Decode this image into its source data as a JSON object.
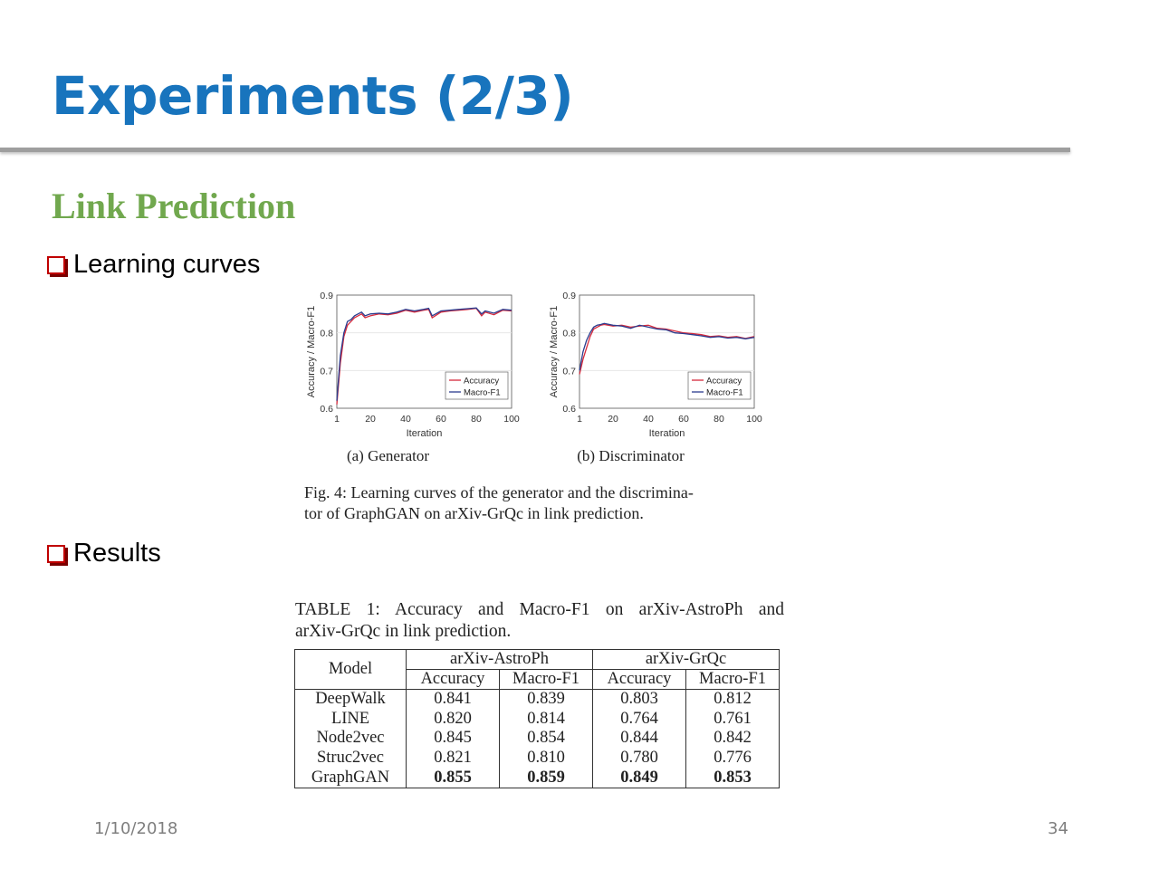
{
  "slide": {
    "title": "Experiments (2/3)",
    "subtitle": "Link Prediction",
    "bullets": [
      "Learning curves",
      "Results"
    ],
    "footer_date": "1/10/2018",
    "page_number": "34"
  },
  "colors": {
    "title": "#1874bd",
    "subtitle": "#71a84e",
    "bullet_box": "#c00000",
    "accuracy_line": "#d62a3c",
    "macro_line": "#2b3c8e"
  },
  "figure": {
    "caption": "Fig. 4: Learning curves of the generator and the discrimina-tor of GraphGAN on arXiv-GrQc in link prediction.",
    "caption_lines": [
      "Fig. 4: Learning curves of the generator and the discrimina-",
      "tor of GraphGAN on arXiv-GrQc in link prediction."
    ]
  },
  "chart_data": [
    {
      "type": "line",
      "title": "(a) Generator",
      "xlabel": "Iteration",
      "ylabel": "Accuracy / Macro-F1",
      "xlim": [
        1,
        100
      ],
      "ylim": [
        0.6,
        0.9
      ],
      "x_ticks": [
        "1",
        "20",
        "40",
        "60",
        "80",
        "100"
      ],
      "y_ticks": [
        "0.6",
        "0.7",
        "0.8",
        "0.9"
      ],
      "legend_position": "bottom-right",
      "grid": true,
      "x": [
        1,
        3,
        5,
        7,
        9,
        11,
        13,
        15,
        17,
        20,
        25,
        30,
        35,
        40,
        45,
        50,
        53,
        55,
        60,
        65,
        70,
        75,
        80,
        83,
        85,
        90,
        95,
        100
      ],
      "series": [
        {
          "name": "Accuracy",
          "values": [
            0.61,
            0.72,
            0.79,
            0.82,
            0.83,
            0.84,
            0.845,
            0.85,
            0.84,
            0.845,
            0.85,
            0.848,
            0.852,
            0.86,
            0.855,
            0.86,
            0.862,
            0.84,
            0.855,
            0.858,
            0.86,
            0.862,
            0.865,
            0.845,
            0.855,
            0.848,
            0.86,
            0.858
          ]
        },
        {
          "name": "Macro-F1",
          "values": [
            0.62,
            0.74,
            0.8,
            0.83,
            0.835,
            0.845,
            0.85,
            0.855,
            0.845,
            0.85,
            0.852,
            0.85,
            0.855,
            0.862,
            0.858,
            0.862,
            0.865,
            0.845,
            0.858,
            0.86,
            0.862,
            0.864,
            0.866,
            0.85,
            0.858,
            0.852,
            0.862,
            0.86
          ]
        }
      ]
    },
    {
      "type": "line",
      "title": "(b) Discriminator",
      "xlabel": "Iteration",
      "ylabel": "Accuracy / Macro-F1",
      "xlim": [
        1,
        100
      ],
      "ylim": [
        0.6,
        0.9
      ],
      "x_ticks": [
        "1",
        "20",
        "40",
        "60",
        "80",
        "100"
      ],
      "y_ticks": [
        "0.6",
        "0.7",
        "0.8",
        "0.9"
      ],
      "legend_position": "bottom-right",
      "grid": true,
      "x": [
        1,
        3,
        5,
        7,
        9,
        11,
        13,
        15,
        20,
        25,
        30,
        35,
        40,
        45,
        50,
        55,
        60,
        65,
        70,
        75,
        80,
        85,
        90,
        95,
        100
      ],
      "series": [
        {
          "name": "Accuracy",
          "values": [
            0.69,
            0.73,
            0.76,
            0.79,
            0.81,
            0.815,
            0.82,
            0.822,
            0.818,
            0.82,
            0.815,
            0.818,
            0.82,
            0.812,
            0.81,
            0.805,
            0.8,
            0.798,
            0.795,
            0.79,
            0.792,
            0.788,
            0.79,
            0.785,
            0.79
          ]
        },
        {
          "name": "Macro-F1",
          "values": [
            0.7,
            0.75,
            0.78,
            0.8,
            0.815,
            0.82,
            0.822,
            0.825,
            0.82,
            0.818,
            0.812,
            0.82,
            0.815,
            0.81,
            0.808,
            0.8,
            0.798,
            0.795,
            0.792,
            0.788,
            0.79,
            0.786,
            0.788,
            0.784,
            0.788
          ]
        }
      ]
    }
  ],
  "table": {
    "caption_lines": [
      "TABLE 1: Accuracy and Macro-F1 on arXiv-AstroPh and",
      "arXiv-GrQc in link prediction."
    ],
    "model_header": "Model",
    "group_headers": [
      "arXiv-AstroPh",
      "arXiv-GrQc"
    ],
    "sub_headers": [
      "Accuracy",
      "Macro-F1",
      "Accuracy",
      "Macro-F1"
    ],
    "rows": [
      {
        "model": "DeepWalk",
        "values": [
          "0.841",
          "0.839",
          "0.803",
          "0.812"
        ]
      },
      {
        "model": "LINE",
        "values": [
          "0.820",
          "0.814",
          "0.764",
          "0.761"
        ]
      },
      {
        "model": "Node2vec",
        "values": [
          "0.845",
          "0.854",
          "0.844",
          "0.842"
        ]
      },
      {
        "model": "Struc2vec",
        "values": [
          "0.821",
          "0.810",
          "0.780",
          "0.776"
        ]
      },
      {
        "model": "GraphGAN",
        "values": [
          "0.855",
          "0.859",
          "0.849",
          "0.853"
        ],
        "bold": true
      }
    ]
  }
}
